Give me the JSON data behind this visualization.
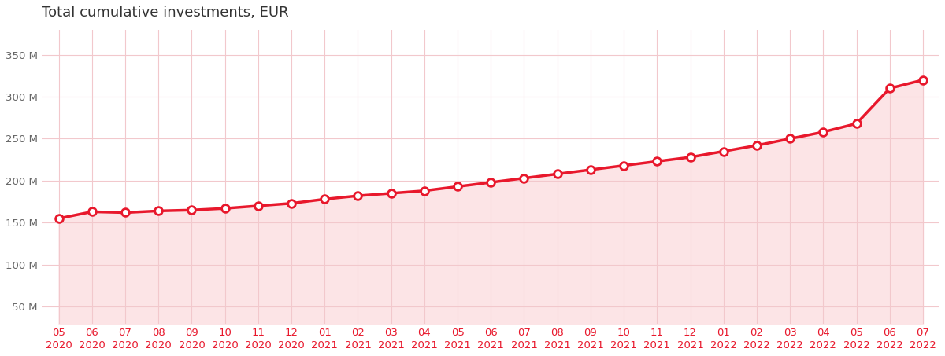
{
  "title": "Total cumulative investments, EUR",
  "x_labels": [
    "05\n2020",
    "06\n2020",
    "07\n2020",
    "08\n2020",
    "09\n2020",
    "10\n2020",
    "11\n2020",
    "12\n2020",
    "01\n2021",
    "02\n2021",
    "03\n2021",
    "04\n2021",
    "05\n2021",
    "06\n2021",
    "07\n2021",
    "08\n2021",
    "09\n2021",
    "10\n2021",
    "11\n2021",
    "12\n2021",
    "01\n2022",
    "02\n2022",
    "03\n2022",
    "04\n2022",
    "05\n2022",
    "06\n2022",
    "07\n2022"
  ],
  "values": [
    155,
    163,
    162,
    164,
    165,
    167,
    170,
    173,
    178,
    182,
    185,
    188,
    193,
    198,
    203,
    208,
    213,
    218,
    223,
    228,
    235,
    242,
    250,
    258,
    268,
    310,
    320
  ],
  "yticks": [
    50,
    100,
    150,
    200,
    250,
    300,
    350
  ],
  "ytick_labels": [
    "50 M",
    "100 M",
    "150 M",
    "200 M",
    "250 M",
    "300 M",
    "350 M"
  ],
  "ylim": [
    30,
    380
  ],
  "line_color": "#e8182c",
  "fill_color": "#fce4e6",
  "marker_face": "#ffffff",
  "marker_edge": "#e8182c",
  "grid_color": "#f2c8cc",
  "bg_color": "#ffffff",
  "title_color": "#333333",
  "tick_color_x": "#e8182c",
  "tick_color_y": "#666666",
  "title_fontsize": 13,
  "tick_fontsize": 9.5
}
